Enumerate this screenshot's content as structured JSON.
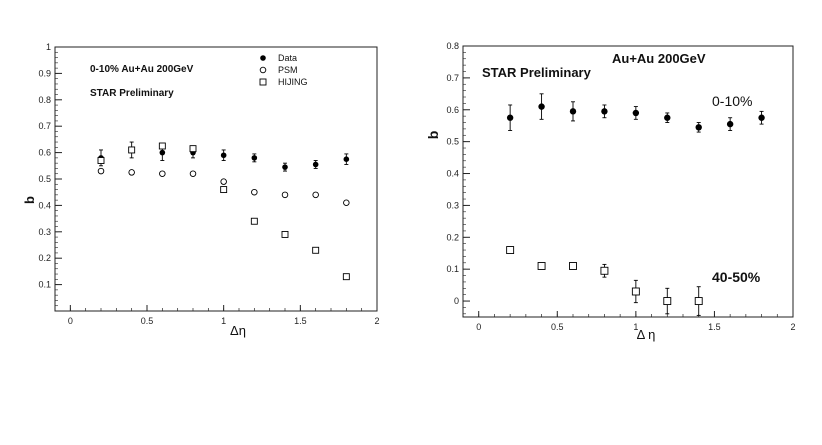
{
  "chart_data": [
    {
      "type": "scatter",
      "annotation_energy": "0-10% Au+Au 200GeV",
      "annotation_star": "STAR Preliminary",
      "xlabel": "Δη",
      "ylabel": "b",
      "xlim": [
        -0.1,
        2.0
      ],
      "ylim": [
        0,
        1.0
      ],
      "xticks": [
        "0",
        "0.5",
        "1",
        "1.5",
        "2"
      ],
      "yticks": [
        "0.1",
        "0.2",
        "0.3",
        "0.4",
        "0.5",
        "0.6",
        "0.7",
        "0.8",
        "0.9",
        "1"
      ],
      "legend_position": "top-right",
      "series": [
        {
          "name": "Data",
          "marker": "filled-circle",
          "x": [
            0.2,
            0.4,
            0.6,
            0.8,
            1.0,
            1.2,
            1.4,
            1.6,
            1.8
          ],
          "y": [
            0.58,
            0.61,
            0.6,
            0.6,
            0.59,
            0.58,
            0.545,
            0.555,
            0.575
          ],
          "err": [
            0.03,
            0.03,
            0.03,
            0.02,
            0.02,
            0.015,
            0.015,
            0.015,
            0.02
          ]
        },
        {
          "name": "PSM",
          "marker": "open-circle",
          "x": [
            0.2,
            0.4,
            0.6,
            0.8,
            1.0,
            1.2,
            1.4,
            1.6,
            1.8
          ],
          "y": [
            0.53,
            0.525,
            0.52,
            0.52,
            0.49,
            0.45,
            0.44,
            0.44,
            0.41
          ],
          "err": []
        },
        {
          "name": "HIJING",
          "marker": "open-square",
          "x": [
            0.2,
            0.4,
            0.6,
            0.8,
            1.0,
            1.2,
            1.4,
            1.6,
            1.8
          ],
          "y": [
            0.57,
            0.61,
            0.625,
            0.615,
            0.46,
            0.34,
            0.29,
            0.23,
            0.13
          ],
          "err": []
        }
      ]
    },
    {
      "type": "scatter",
      "annotation_energy": "Au+Au 200GeV",
      "annotation_star": "STAR Preliminary",
      "label_central": "0-10%",
      "label_peripheral": "40-50%",
      "xlabel": "Δ η",
      "ylabel": "b",
      "xlim": [
        -0.1,
        2.0
      ],
      "ylim": [
        -0.05,
        0.8
      ],
      "xticks": [
        "0",
        "0.5",
        "1",
        "1.5",
        "2"
      ],
      "yticks": [
        "0",
        "0.1",
        "0.2",
        "0.3",
        "0.4",
        "0.5",
        "0.6",
        "0.7",
        "0.8"
      ],
      "series": [
        {
          "name": "0-10%",
          "marker": "filled-circle",
          "x": [
            0.2,
            0.4,
            0.6,
            0.8,
            1.0,
            1.2,
            1.4,
            1.6,
            1.8
          ],
          "y": [
            0.575,
            0.61,
            0.595,
            0.595,
            0.59,
            0.575,
            0.545,
            0.555,
            0.575
          ],
          "err": [
            0.04,
            0.04,
            0.03,
            0.02,
            0.02,
            0.015,
            0.015,
            0.02,
            0.02
          ]
        },
        {
          "name": "40-50%",
          "marker": "open-square",
          "x": [
            0.2,
            0.4,
            0.6,
            0.8,
            1.0,
            1.2,
            1.4
          ],
          "y": [
            0.16,
            0.11,
            0.11,
            0.095,
            0.03,
            0.0,
            0.0
          ],
          "err": [
            0.01,
            0.01,
            0.01,
            0.02,
            0.035,
            0.04,
            0.045
          ]
        }
      ]
    }
  ]
}
